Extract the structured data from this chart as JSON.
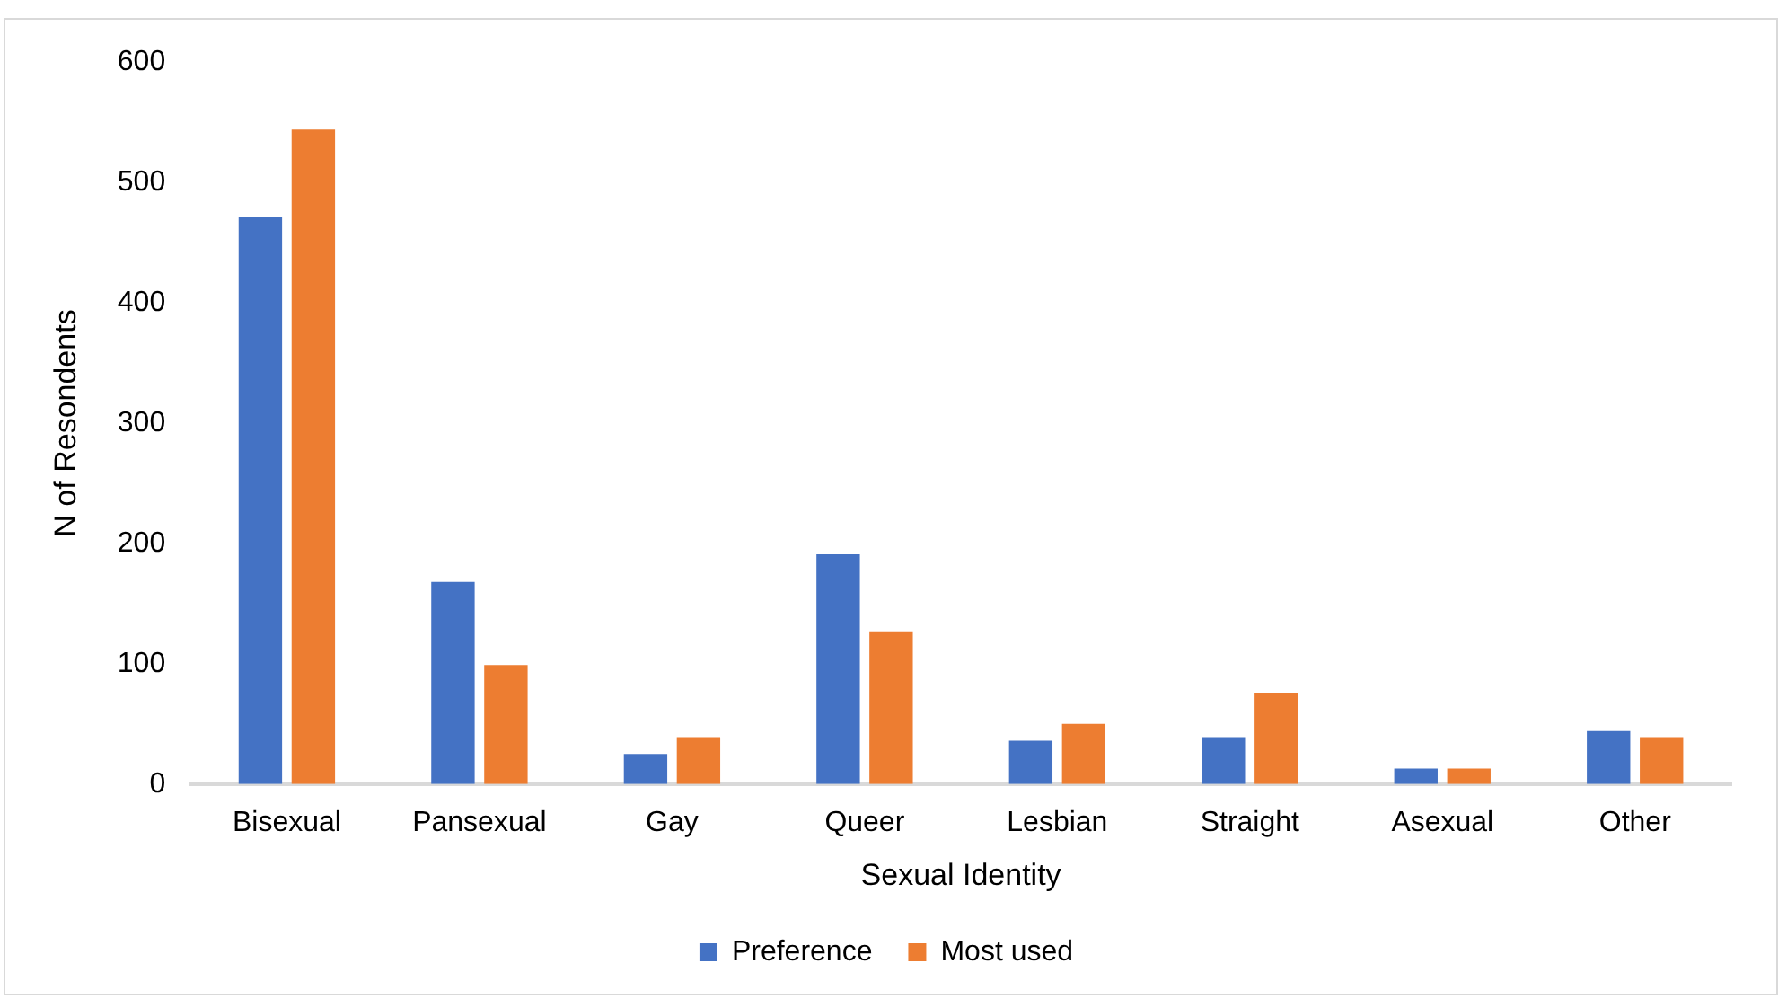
{
  "chart_data": {
    "type": "bar",
    "xlabel": "Sexual Identity",
    "ylabel": "N of Resondents",
    "categories": [
      "Bisexual",
      "Pansexual",
      "Gay",
      "Queer",
      "Lesbian",
      "Straight",
      "Asexual",
      "Other"
    ],
    "series": [
      {
        "name": "Preference",
        "color": "#4472c4",
        "values": [
          471,
          168,
          25,
          191,
          36,
          39,
          13,
          44
        ]
      },
      {
        "name": "Most used",
        "color": "#ed7d31",
        "values": [
          544,
          99,
          39,
          127,
          50,
          76,
          13,
          39
        ]
      }
    ],
    "ylim": [
      0,
      600
    ],
    "yticks": [
      0,
      100,
      200,
      300,
      400,
      500,
      600
    ],
    "grid": false,
    "legend": "bottom"
  }
}
